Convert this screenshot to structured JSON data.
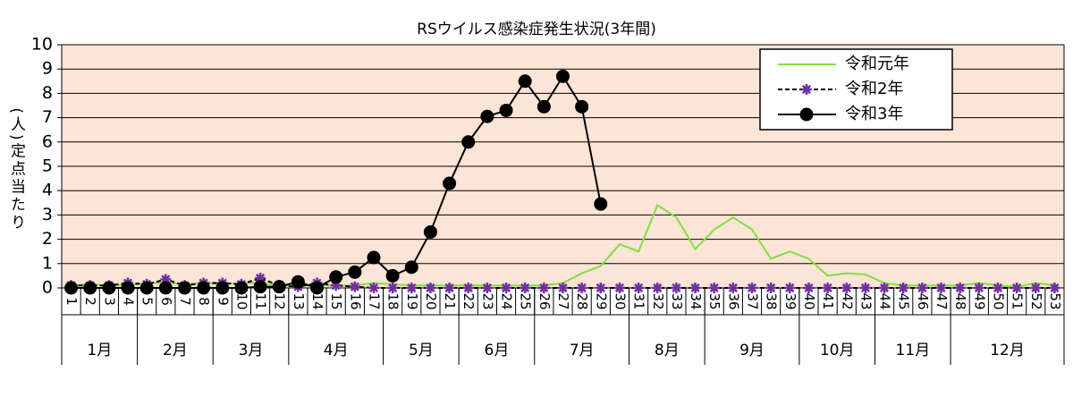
{
  "chart_data": {
    "type": "line",
    "title": "RSウイルス感染症発生状況(3年間)",
    "y_label": "(人)定点当たり",
    "categories": [
      "1",
      "2",
      "3",
      "4",
      "5",
      "6",
      "7",
      "8",
      "9",
      "10",
      "11",
      "12",
      "13",
      "14",
      "15",
      "16",
      "17",
      "18",
      "19",
      "20",
      "21",
      "22",
      "23",
      "24",
      "25",
      "26",
      "27",
      "28",
      "29",
      "30",
      "31",
      "32",
      "33",
      "34",
      "35",
      "36",
      "37",
      "38",
      "39",
      "40",
      "41",
      "42",
      "43",
      "44",
      "45",
      "46",
      "47",
      "48",
      "49",
      "50",
      "51",
      "52",
      "53"
    ],
    "months": [
      {
        "label": "1月",
        "span": 4
      },
      {
        "label": "2月",
        "span": 4
      },
      {
        "label": "3月",
        "span": 4
      },
      {
        "label": "4月",
        "span": 5
      },
      {
        "label": "5月",
        "span": 4
      },
      {
        "label": "6月",
        "span": 4
      },
      {
        "label": "7月",
        "span": 5
      },
      {
        "label": "8月",
        "span": 4
      },
      {
        "label": "9月",
        "span": 5
      },
      {
        "label": "10月",
        "span": 4
      },
      {
        "label": "11月",
        "span": 4
      },
      {
        "label": "12月",
        "span": 6
      }
    ],
    "series": [
      {
        "name": "令和元年",
        "color": "#80e040",
        "marker": "none",
        "dashed": false,
        "values": [
          0.1,
          0.15,
          0.1,
          0.1,
          0.2,
          0.2,
          0.15,
          0.2,
          0.15,
          0.2,
          0.2,
          0.1,
          0.1,
          0.1,
          0.1,
          0.1,
          0.2,
          0.15,
          0.1,
          0.1,
          0.1,
          0.1,
          0.1,
          0.1,
          0.1,
          0.1,
          0.2,
          0.6,
          0.9,
          1.8,
          1.5,
          3.4,
          2.9,
          1.6,
          2.4,
          2.9,
          2.4,
          1.2,
          1.5,
          1.2,
          0.5,
          0.6,
          0.55,
          0.2,
          0.1,
          0.1,
          0.1,
          0.1,
          0.2,
          0.1,
          0.05,
          0.2,
          0.1
        ]
      },
      {
        "name": "令和2年",
        "color": "#7030a0",
        "marker": "star",
        "dashed": true,
        "values": [
          0.1,
          0.1,
          0.1,
          0.2,
          0.15,
          0.35,
          0.1,
          0.2,
          0.2,
          0.15,
          0.4,
          0.1,
          0.05,
          0.2,
          0.1,
          0.05,
          0,
          0,
          0,
          0,
          0,
          0,
          0,
          0,
          0,
          0,
          0,
          0,
          0,
          0,
          0,
          0,
          0,
          0,
          0,
          0,
          0,
          0,
          0,
          0,
          0,
          0,
          0,
          0,
          0,
          0,
          0,
          0,
          0,
          0,
          0,
          0,
          0
        ]
      },
      {
        "name": "令和3年",
        "color": "#000000",
        "marker": "circle",
        "dashed": false,
        "values": [
          0,
          0,
          0,
          0,
          0,
          0,
          0,
          0,
          0,
          0,
          0.05,
          0.05,
          0.25,
          0,
          0.45,
          0.65,
          1.25,
          0.5,
          0.85,
          2.3,
          4.3,
          6.0,
          7.05,
          7.3,
          8.5,
          7.45,
          8.7,
          7.45,
          3.45,
          null,
          null,
          null,
          null,
          null,
          null,
          null,
          null,
          null,
          null,
          null,
          null,
          null,
          null,
          null,
          null,
          null,
          null,
          null,
          null,
          null,
          null,
          null,
          null
        ]
      }
    ],
    "ylim": [
      0,
      10
    ],
    "yticks": [
      0,
      1,
      2,
      3,
      4,
      5,
      6,
      7,
      8,
      9,
      10
    ],
    "grid": true,
    "legend": "top-right"
  }
}
